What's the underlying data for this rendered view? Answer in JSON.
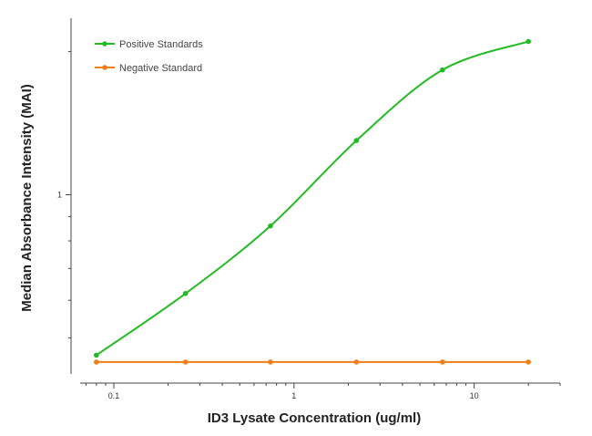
{
  "chart_data": {
    "type": "line",
    "title": "",
    "xlabel": "ID3 Lysate Concentration (ug/ml)",
    "ylabel": "Median Absorbance Intensity (MAI)",
    "x_scale": "log",
    "y_scale": "log",
    "xlim": [
      0.065,
      30
    ],
    "ylim": [
      0.42,
      2.35
    ],
    "x_ticks": [
      {
        "value": 0.1,
        "label": "0.1"
      },
      {
        "value": 1,
        "label": "1"
      },
      {
        "value": 10,
        "label": "10"
      }
    ],
    "y_ticks": [
      {
        "value": 1,
        "label": "1"
      }
    ],
    "grid": false,
    "legend_position": "top-left",
    "series": [
      {
        "name": "Positive Standards",
        "color": "#22bb22",
        "marker": "circle",
        "line": "smooth fitted curve",
        "x": [
          0.08,
          0.25,
          0.74,
          2.22,
          6.67,
          20
        ],
        "y": [
          0.46,
          0.62,
          0.86,
          1.3,
          1.83,
          2.1
        ]
      },
      {
        "name": "Negative Standard",
        "color": "#f07f1a",
        "marker": "circle",
        "line": "straight",
        "x": [
          0.08,
          0.25,
          0.74,
          2.22,
          6.67,
          20
        ],
        "y": [
          0.445,
          0.445,
          0.445,
          0.445,
          0.445,
          0.445
        ]
      }
    ]
  }
}
